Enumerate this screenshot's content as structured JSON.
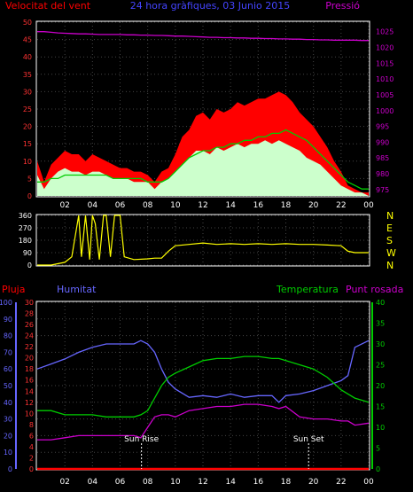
{
  "title": "24 hora gràfiques, 03 Junio 2015",
  "colors": {
    "background": "#000000",
    "frame": "#ffffff",
    "wind_avg": "#ff0000",
    "wind_gust_fill": "#ff0000",
    "wind_speed_fill": "#ccffcc",
    "wind_trend": "#00cc00",
    "pressure": "#cc00cc",
    "direction": "#ffff00",
    "rain": "#ff0000",
    "humidity": "#6666ff",
    "temperature": "#00cc00",
    "dewpoint": "#cc00cc",
    "sun_marker": "#ffffff",
    "grid": "#444444"
  },
  "x_ticks": [
    "02",
    "04",
    "06",
    "08",
    "10",
    "12",
    "14",
    "16",
    "18",
    "20",
    "22",
    "00"
  ],
  "chart_data": [
    {
      "type": "area",
      "panel": "wind",
      "title": "24 hora gràfiques, 03 Junio 2015",
      "left_axis_label": "Velocitat del vent",
      "right_axis_label": "Pressió",
      "left_ticks": [
        "0",
        "5",
        "10",
        "15",
        "20",
        "25",
        "30",
        "35",
        "40",
        "45",
        "50"
      ],
      "right_ticks": [
        "975",
        "980",
        "985",
        "990",
        "995",
        "1000",
        "1005",
        "1010",
        "1015",
        "1020",
        "1025"
      ],
      "left_range": [
        0,
        50
      ],
      "right_range": [
        973,
        1028
      ],
      "grid": true,
      "x_range": [
        0,
        24
      ],
      "x": [
        0,
        0.5,
        1,
        1.5,
        2,
        2.5,
        3,
        3.5,
        4,
        4.5,
        5,
        5.5,
        6,
        6.5,
        7,
        7.5,
        8,
        8.5,
        9,
        9.5,
        10,
        10.5,
        11,
        11.5,
        12,
        12.5,
        13,
        13.5,
        14,
        14.5,
        15,
        15.5,
        16,
        16.5,
        17,
        17.5,
        18,
        18.5,
        19,
        19.5,
        20,
        20.5,
        21,
        21.5,
        22,
        22.5,
        23,
        23.5,
        24
      ],
      "series": [
        {
          "role": "gust",
          "values": [
            10,
            4,
            9,
            11,
            13,
            12,
            12,
            10,
            12,
            11,
            10,
            9,
            8,
            8,
            7,
            7,
            6,
            4,
            7,
            8,
            12,
            17,
            19,
            23,
            24,
            22,
            25,
            24,
            25,
            27,
            26,
            27,
            28,
            28,
            29,
            30,
            29,
            27,
            24,
            22,
            20,
            17,
            14,
            10,
            7,
            3,
            2,
            1,
            1
          ]
        },
        {
          "role": "speed",
          "values": [
            6,
            2,
            5,
            7,
            8,
            7,
            7,
            6,
            7,
            7,
            6,
            5,
            5,
            5,
            4,
            4,
            4,
            2,
            4,
            5,
            7,
            9,
            11,
            13,
            13,
            12,
            14,
            13,
            14,
            15,
            14,
            15,
            15,
            16,
            15,
            16,
            15,
            14,
            13,
            11,
            10,
            9,
            7,
            5,
            3,
            2,
            1,
            1,
            0
          ]
        },
        {
          "role": "avg",
          "values": [
            4,
            4,
            5,
            5,
            6,
            6,
            6,
            6,
            6,
            6,
            6,
            5,
            5,
            5,
            5,
            5,
            4,
            4,
            4,
            5,
            7,
            9,
            11,
            12,
            13,
            13,
            14,
            14,
            15,
            15,
            16,
            16,
            17,
            17,
            18,
            18,
            19,
            18,
            17,
            16,
            14,
            12,
            10,
            8,
            6,
            4,
            3,
            2,
            2
          ]
        },
        {
          "role": "pressure",
          "values": [
            1025.0,
            1025.0,
            1024.8,
            1024.6,
            1024.5,
            1024.4,
            1024.3,
            1024.3,
            1024.2,
            1024.1,
            1024.1,
            1024.1,
            1024.1,
            1024.0,
            1024.0,
            1023.9,
            1023.9,
            1023.8,
            1023.8,
            1023.7,
            1023.6,
            1023.6,
            1023.5,
            1023.4,
            1023.3,
            1023.2,
            1023.2,
            1023.1,
            1023.1,
            1023.0,
            1023.0,
            1022.9,
            1022.9,
            1022.8,
            1022.8,
            1022.7,
            1022.7,
            1022.6,
            1022.6,
            1022.5,
            1022.5,
            1022.4,
            1022.4,
            1022.3,
            1022.3,
            1022.3,
            1022.3,
            1022.2,
            1022.2
          ]
        }
      ]
    },
    {
      "type": "line",
      "panel": "direction",
      "left_ticks": [
        "0",
        "90",
        "180",
        "270",
        "360"
      ],
      "right_ticks": [
        "N",
        "W",
        "S",
        "E",
        "N"
      ],
      "left_range": [
        0,
        360
      ],
      "grid": true,
      "x_range": [
        0,
        24
      ],
      "x": [
        0,
        1,
        2,
        2.5,
        3,
        3.2,
        3.5,
        3.8,
        4,
        4.2,
        4.5,
        4.8,
        5,
        5.3,
        5.6,
        6,
        6.3,
        7,
        8,
        8.5,
        9,
        9.5,
        10,
        11,
        12,
        13,
        14,
        15,
        16,
        17,
        18,
        19,
        20,
        21,
        22,
        22.5,
        23,
        24
      ],
      "series": [
        {
          "role": "direction",
          "values": [
            0,
            0,
            20,
            60,
            360,
            60,
            360,
            40,
            360,
            300,
            40,
            360,
            360,
            60,
            360,
            360,
            60,
            40,
            45,
            50,
            50,
            100,
            140,
            150,
            160,
            150,
            155,
            150,
            155,
            150,
            155,
            150,
            150,
            145,
            140,
            100,
            90,
            90
          ]
        }
      ]
    },
    {
      "type": "line",
      "panel": "weather",
      "labels": {
        "rain": "Pluja",
        "humidity": "Humitat",
        "temperature": "Temperatura",
        "dewpoint": "Punt rosada"
      },
      "rain_ticks": [
        "0",
        "2",
        "4",
        "6",
        "8",
        "10",
        "12",
        "14",
        "16",
        "18",
        "20",
        "22",
        "24",
        "26",
        "28",
        "30"
      ],
      "humidity_ticks": [
        "0",
        "10",
        "20",
        "30",
        "40",
        "50",
        "60",
        "70",
        "80",
        "90",
        "100"
      ],
      "temperature_ticks": [
        "0",
        "5",
        "10",
        "15",
        "20",
        "25",
        "30",
        "35",
        "40"
      ],
      "rain_range": [
        0,
        30
      ],
      "humidity_range": [
        0,
        100
      ],
      "temperature_range": [
        0,
        40
      ],
      "annotations": [
        {
          "label": "Sun Rise",
          "tick_label": "SunRise",
          "x": 7.55
        },
        {
          "label": "Sun Set",
          "tick_label": "Sun Set",
          "x": 19.65
        }
      ],
      "grid": true,
      "x_range": [
        0,
        24
      ],
      "x": [
        0,
        1,
        2,
        3,
        4,
        5,
        6,
        7,
        7.5,
        8,
        8.5,
        9,
        9.5,
        10,
        11,
        12,
        13,
        14,
        15,
        16,
        17,
        17.5,
        18,
        19,
        20,
        21,
        22,
        22.5,
        23,
        24
      ],
      "series": [
        {
          "role": "rain",
          "values": [
            0,
            0,
            0,
            0,
            0,
            0,
            0,
            0,
            0,
            0,
            0,
            0,
            0,
            0,
            0,
            0,
            0,
            0,
            0,
            0,
            0,
            0,
            0,
            0,
            0,
            0,
            0,
            0,
            0,
            0
          ]
        },
        {
          "role": "humidity",
          "values": [
            60,
            63,
            66,
            70,
            73,
            75,
            75,
            75,
            77,
            75,
            70,
            60,
            52,
            48,
            43,
            44,
            43,
            45,
            43,
            44,
            44,
            40,
            44,
            45,
            47,
            50,
            53,
            56,
            73,
            77
          ]
        },
        {
          "role": "temperature",
          "values": [
            14,
            14,
            13,
            13,
            13,
            12.5,
            12.5,
            12.5,
            13,
            14,
            17,
            20,
            22,
            23,
            24.5,
            26,
            26.5,
            26.5,
            27,
            27,
            26.5,
            26.5,
            26,
            25,
            24,
            22,
            19,
            18,
            17,
            16
          ]
        },
        {
          "role": "dewpoint",
          "values": [
            7,
            7,
            7.5,
            8,
            8,
            8,
            8,
            8,
            7.5,
            10,
            12.5,
            13,
            13,
            12.5,
            14,
            14.5,
            15,
            15,
            15.5,
            15.5,
            15,
            14.5,
            15,
            12.5,
            12,
            12,
            11.5,
            11.5,
            10.5,
            11
          ]
        }
      ]
    }
  ]
}
